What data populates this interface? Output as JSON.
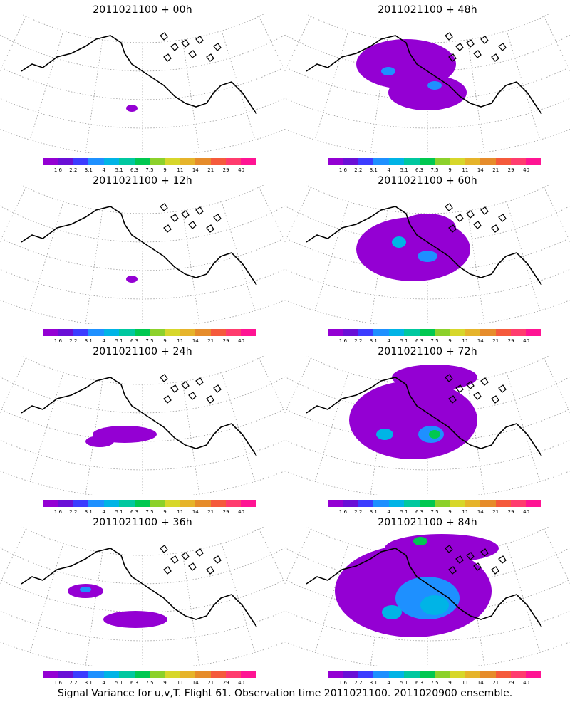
{
  "panels": [
    {
      "title": "2011021100 + 00h",
      "level": 0
    },
    {
      "title": "2011021100 + 48h",
      "level": 3
    },
    {
      "title": "2011021100 + 12h",
      "level": 0
    },
    {
      "title": "2011021100 + 60h",
      "level": 4
    },
    {
      "title": "2011021100 + 24h",
      "level": 1
    },
    {
      "title": "2011021100 + 72h",
      "level": 5
    },
    {
      "title": "2011021100 + 36h",
      "level": 2
    },
    {
      "title": "2011021100 + 84h",
      "level": 6
    }
  ],
  "colorbar": {
    "colors": [
      "#9400d3",
      "#6a0fd6",
      "#3c3cff",
      "#1e90ff",
      "#00b4e6",
      "#00c8a0",
      "#00c850",
      "#8cd12b",
      "#d7d72b",
      "#e6b42b",
      "#e68c2b",
      "#f55a3c",
      "#ff3c6e",
      "#ff1493"
    ],
    "labels": [
      "1.6",
      "2.2",
      "3.1",
      "4",
      "5.1",
      "6.3",
      "7.5",
      "9",
      "11",
      "14",
      "21",
      "29",
      "40"
    ]
  },
  "footer": "Signal Variance for u,v,T. Flight 61. Observation time 2011021100. 2011020900 ensemble."
}
